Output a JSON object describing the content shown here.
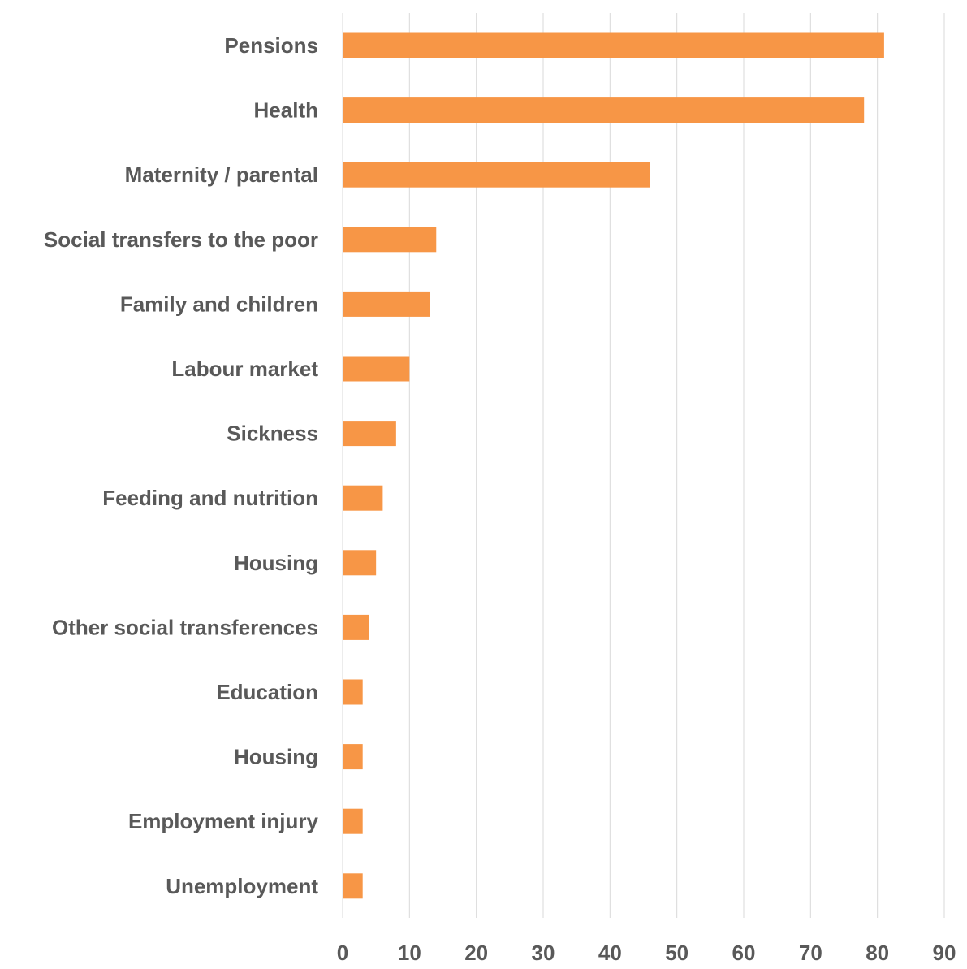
{
  "chart_data": {
    "type": "bar",
    "orientation": "horizontal",
    "title": "",
    "xlabel": "",
    "ylabel": "",
    "categories": [
      "Pensions",
      "Health",
      "Maternity / parental",
      "Social transfers to the poor",
      "Family and children",
      "Labour market",
      "Sickness",
      "Feeding and nutrition",
      "Housing",
      "Other social transferences",
      "Education",
      "Housing",
      "Employment injury",
      "Unemployment"
    ],
    "values": [
      81,
      78,
      46,
      14,
      13,
      10,
      8,
      6,
      5,
      4,
      3,
      3,
      3,
      3
    ],
    "xlim": [
      0,
      90
    ],
    "xticks": [
      "0",
      "10",
      "20",
      "30",
      "40",
      "50",
      "60",
      "70",
      "80",
      "90"
    ],
    "grid": "vertical",
    "legend": "none",
    "bar_color": "#f79646",
    "gridline_color": "#d9d9d9",
    "label_color": "#595959"
  }
}
